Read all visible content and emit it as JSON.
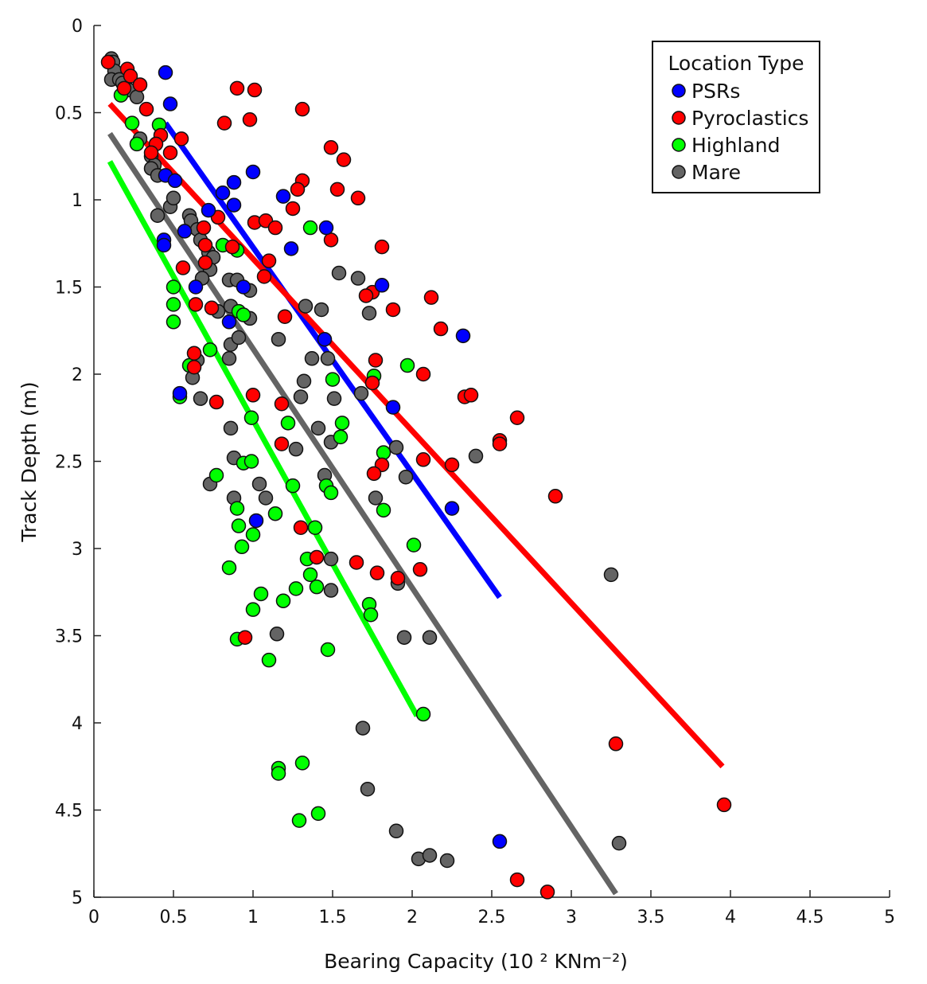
{
  "chart_data": {
    "type": "scatter",
    "xlabel": "Bearing Capacity (10 ² KNm⁻²)",
    "ylabel": "Track Depth (m)",
    "xlim": [
      0,
      5
    ],
    "ylim": [
      0,
      5
    ],
    "y_inverted": true,
    "grid": false,
    "x_ticks": [
      "0",
      "0.5",
      "1",
      "1.5",
      "2",
      "2.5",
      "3",
      "3.5",
      "4",
      "4.5",
      "5"
    ],
    "y_ticks": [
      "0",
      "0.5",
      "1",
      "1.5",
      "2",
      "2.5",
      "3",
      "3.5",
      "4",
      "4.5",
      "5"
    ],
    "legend": {
      "title": "Location Type",
      "placement": "top-right"
    },
    "series": [
      {
        "name": "PSRs",
        "color": "#0000ff",
        "points": [
          [
            0.45,
            0.27
          ],
          [
            0.48,
            0.45
          ],
          [
            0.45,
            0.86
          ],
          [
            0.51,
            0.89
          ],
          [
            0.88,
            0.9
          ],
          [
            0.81,
            0.96
          ],
          [
            0.88,
            1.03
          ],
          [
            0.72,
            1.06
          ],
          [
            1.0,
            0.84
          ],
          [
            1.19,
            0.98
          ],
          [
            0.57,
            1.18
          ],
          [
            0.44,
            1.23
          ],
          [
            0.44,
            1.26
          ],
          [
            1.24,
            1.28
          ],
          [
            1.46,
            1.16
          ],
          [
            0.94,
            1.5
          ],
          [
            0.64,
            1.5
          ],
          [
            0.85,
            1.7
          ],
          [
            1.81,
            1.49
          ],
          [
            1.45,
            1.8
          ],
          [
            2.32,
            1.78
          ],
          [
            0.54,
            2.11
          ],
          [
            1.88,
            2.19
          ],
          [
            1.02,
            2.84
          ],
          [
            2.25,
            2.77
          ],
          [
            2.55,
            4.68
          ]
        ],
        "fit": [
          [
            0.45,
            0.56
          ],
          [
            2.55,
            3.28
          ]
        ]
      },
      {
        "name": "Pyroclastics",
        "color": "#ff0000",
        "points": [
          [
            0.09,
            0.21
          ],
          [
            0.21,
            0.25
          ],
          [
            0.23,
            0.29
          ],
          [
            0.29,
            0.34
          ],
          [
            0.19,
            0.36
          ],
          [
            0.9,
            0.36
          ],
          [
            1.01,
            0.37
          ],
          [
            0.33,
            0.48
          ],
          [
            1.31,
            0.48
          ],
          [
            0.82,
            0.56
          ],
          [
            0.98,
            0.54
          ],
          [
            0.55,
            0.65
          ],
          [
            0.42,
            0.63
          ],
          [
            0.39,
            0.68
          ],
          [
            0.36,
            0.73
          ],
          [
            0.48,
            0.73
          ],
          [
            1.49,
            0.7
          ],
          [
            1.57,
            0.77
          ],
          [
            1.31,
            0.89
          ],
          [
            1.28,
            0.94
          ],
          [
            1.53,
            0.94
          ],
          [
            1.66,
            0.99
          ],
          [
            1.25,
            1.05
          ],
          [
            0.78,
            1.1
          ],
          [
            1.01,
            1.13
          ],
          [
            1.08,
            1.12
          ],
          [
            1.14,
            1.16
          ],
          [
            0.69,
            1.16
          ],
          [
            0.7,
            1.26
          ],
          [
            0.87,
            1.27
          ],
          [
            1.49,
            1.23
          ],
          [
            1.81,
            1.27
          ],
          [
            1.1,
            1.35
          ],
          [
            0.7,
            1.36
          ],
          [
            0.56,
            1.39
          ],
          [
            1.07,
            1.44
          ],
          [
            1.75,
            1.53
          ],
          [
            1.71,
            1.55
          ],
          [
            2.12,
            1.56
          ],
          [
            0.64,
            1.6
          ],
          [
            0.74,
            1.62
          ],
          [
            1.88,
            1.63
          ],
          [
            1.2,
            1.67
          ],
          [
            2.18,
            1.74
          ],
          [
            0.63,
            1.88
          ],
          [
            1.77,
            1.92
          ],
          [
            0.63,
            1.96
          ],
          [
            2.07,
            2.0
          ],
          [
            1.75,
            2.05
          ],
          [
            1.0,
            2.12
          ],
          [
            0.77,
            2.16
          ],
          [
            1.18,
            2.17
          ],
          [
            2.33,
            2.13
          ],
          [
            2.37,
            2.12
          ],
          [
            2.66,
            2.25
          ],
          [
            2.55,
            2.38
          ],
          [
            2.55,
            2.4
          ],
          [
            1.18,
            2.4
          ],
          [
            2.07,
            2.49
          ],
          [
            2.25,
            2.52
          ],
          [
            1.81,
            2.52
          ],
          [
            1.76,
            2.57
          ],
          [
            2.9,
            2.7
          ],
          [
            1.3,
            2.88
          ],
          [
            1.65,
            3.08
          ],
          [
            1.78,
            3.14
          ],
          [
            1.91,
            3.17
          ],
          [
            2.05,
            3.12
          ],
          [
            1.4,
            3.05
          ],
          [
            0.95,
            3.51
          ],
          [
            3.28,
            4.12
          ],
          [
            3.96,
            4.47
          ],
          [
            2.66,
            4.9
          ],
          [
            2.85,
            4.97
          ]
        ],
        "fit": [
          [
            0.1,
            0.45
          ],
          [
            3.95,
            4.25
          ]
        ]
      },
      {
        "name": "Highland",
        "color": "#00ff00",
        "points": [
          [
            0.17,
            0.4
          ],
          [
            0.24,
            0.56
          ],
          [
            0.41,
            0.57
          ],
          [
            0.27,
            0.68
          ],
          [
            0.81,
            1.26
          ],
          [
            0.9,
            1.29
          ],
          [
            1.36,
            1.16
          ],
          [
            0.5,
            1.5
          ],
          [
            0.5,
            1.6
          ],
          [
            0.5,
            1.7
          ],
          [
            0.73,
            1.86
          ],
          [
            0.6,
            1.95
          ],
          [
            0.54,
            2.13
          ],
          [
            0.91,
            1.64
          ],
          [
            0.94,
            1.66
          ],
          [
            1.5,
            2.03
          ],
          [
            1.76,
            2.01
          ],
          [
            1.97,
            1.95
          ],
          [
            0.99,
            2.25
          ],
          [
            1.22,
            2.28
          ],
          [
            1.56,
            2.28
          ],
          [
            1.55,
            2.36
          ],
          [
            1.82,
            2.45
          ],
          [
            0.77,
            2.58
          ],
          [
            0.94,
            2.51
          ],
          [
            0.99,
            2.5
          ],
          [
            1.25,
            2.64
          ],
          [
            1.46,
            2.64
          ],
          [
            1.49,
            2.68
          ],
          [
            1.82,
            2.78
          ],
          [
            0.9,
            2.77
          ],
          [
            0.91,
            2.87
          ],
          [
            1.14,
            2.8
          ],
          [
            1.39,
            2.88
          ],
          [
            1.0,
            2.92
          ],
          [
            0.93,
            2.99
          ],
          [
            2.01,
            2.98
          ],
          [
            0.85,
            3.11
          ],
          [
            1.34,
            3.06
          ],
          [
            1.36,
            3.15
          ],
          [
            1.4,
            3.22
          ],
          [
            1.27,
            3.23
          ],
          [
            1.05,
            3.26
          ],
          [
            1.19,
            3.3
          ],
          [
            1.73,
            3.32
          ],
          [
            1.74,
            3.38
          ],
          [
            1.0,
            3.35
          ],
          [
            0.9,
            3.52
          ],
          [
            1.47,
            3.58
          ],
          [
            1.1,
            3.64
          ],
          [
            2.07,
            3.95
          ],
          [
            1.31,
            4.23
          ],
          [
            1.16,
            4.26
          ],
          [
            1.16,
            4.29
          ],
          [
            1.29,
            4.56
          ],
          [
            1.41,
            4.52
          ]
        ],
        "fit": [
          [
            0.1,
            0.78
          ],
          [
            2.03,
            3.96
          ]
        ]
      },
      {
        "name": "Mare",
        "color": "#646464",
        "points": [
          [
            0.11,
            0.19
          ],
          [
            0.12,
            0.21
          ],
          [
            0.13,
            0.26
          ],
          [
            0.11,
            0.31
          ],
          [
            0.16,
            0.31
          ],
          [
            0.18,
            0.33
          ],
          [
            0.22,
            0.37
          ],
          [
            0.27,
            0.41
          ],
          [
            0.29,
            0.65
          ],
          [
            0.36,
            0.75
          ],
          [
            0.38,
            0.8
          ],
          [
            0.36,
            0.82
          ],
          [
            0.4,
            0.86
          ],
          [
            0.48,
            1.04
          ],
          [
            0.5,
            0.99
          ],
          [
            0.4,
            1.09
          ],
          [
            0.6,
            1.09
          ],
          [
            0.61,
            1.12
          ],
          [
            0.65,
            1.17
          ],
          [
            0.67,
            1.23
          ],
          [
            0.72,
            1.3
          ],
          [
            0.75,
            1.33
          ],
          [
            0.73,
            1.4
          ],
          [
            0.68,
            1.45
          ],
          [
            0.85,
            1.46
          ],
          [
            0.9,
            1.46
          ],
          [
            0.98,
            1.52
          ],
          [
            0.86,
            1.61
          ],
          [
            0.78,
            1.64
          ],
          [
            0.98,
            1.68
          ],
          [
            1.33,
            1.61
          ],
          [
            1.43,
            1.63
          ],
          [
            1.54,
            1.42
          ],
          [
            1.66,
            1.45
          ],
          [
            1.73,
            1.65
          ],
          [
            1.16,
            1.8
          ],
          [
            0.86,
            1.83
          ],
          [
            0.91,
            1.79
          ],
          [
            0.85,
            1.91
          ],
          [
            0.65,
            1.92
          ],
          [
            0.62,
            2.02
          ],
          [
            0.67,
            2.14
          ],
          [
            1.37,
            1.91
          ],
          [
            1.47,
            1.91
          ],
          [
            1.32,
            2.04
          ],
          [
            1.3,
            2.13
          ],
          [
            1.51,
            2.14
          ],
          [
            1.68,
            2.11
          ],
          [
            0.86,
            2.31
          ],
          [
            1.27,
            2.43
          ],
          [
            1.41,
            2.31
          ],
          [
            1.49,
            2.39
          ],
          [
            1.9,
            2.42
          ],
          [
            2.4,
            2.47
          ],
          [
            0.88,
            2.48
          ],
          [
            1.96,
            2.59
          ],
          [
            1.45,
            2.58
          ],
          [
            0.73,
            2.63
          ],
          [
            1.04,
            2.63
          ],
          [
            1.08,
            2.71
          ],
          [
            0.88,
            2.71
          ],
          [
            1.77,
            2.71
          ],
          [
            1.49,
            3.06
          ],
          [
            1.49,
            3.24
          ],
          [
            1.91,
            3.2
          ],
          [
            1.15,
            3.49
          ],
          [
            1.95,
            3.51
          ],
          [
            2.11,
            3.51
          ],
          [
            3.25,
            3.15
          ],
          [
            1.69,
            4.03
          ],
          [
            1.72,
            4.38
          ],
          [
            1.9,
            4.62
          ],
          [
            2.04,
            4.78
          ],
          [
            2.11,
            4.76
          ],
          [
            2.22,
            4.79
          ],
          [
            3.3,
            4.69
          ]
        ],
        "fit": [
          [
            0.1,
            0.62
          ],
          [
            3.28,
            4.98
          ]
        ]
      }
    ]
  }
}
